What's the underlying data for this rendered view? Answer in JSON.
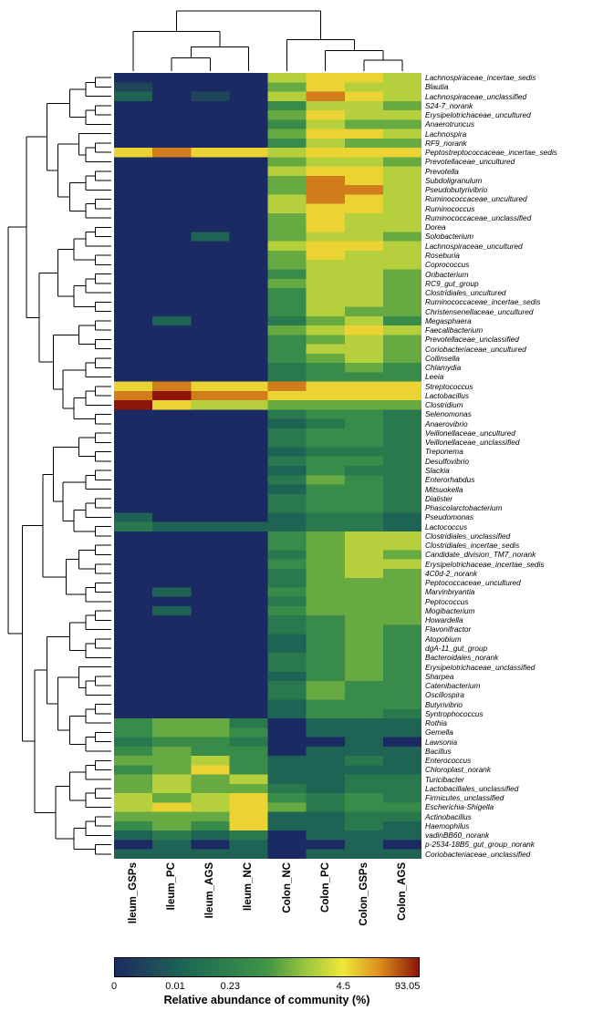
{
  "chart_data": {
    "type": "heatmap",
    "title": "",
    "legend": {
      "title": "Relative abundance of community (%)",
      "ticks": [
        {
          "label": "0",
          "pos": 0.0
        },
        {
          "label": "0.01",
          "pos": 0.2
        },
        {
          "label": "0.23",
          "pos": 0.38
        },
        {
          "label": "4.5",
          "pos": 0.75
        },
        {
          "label": "93.05",
          "pos": 0.96
        }
      ],
      "gradient_stops": [
        [
          0.0,
          "#1c2a63"
        ],
        [
          0.25,
          "#1f6a52"
        ],
        [
          0.5,
          "#3f9545"
        ],
        [
          0.63,
          "#9cc63e"
        ],
        [
          0.75,
          "#f0e83a"
        ],
        [
          0.87,
          "#dd8f1e"
        ],
        [
          1.0,
          "#8c1507"
        ]
      ],
      "value_scale_note": "cell values are 0-9 gradient indices; legend maps 0 to 93.05 % on a log-like scale"
    },
    "columns": [
      "Ileum_GSPs",
      "Ileum_PC",
      "Ileum_AGS",
      "Ileum_NC",
      "Colon_NC",
      "Colon_PC",
      "Colon_GSPs",
      "Colon_AGS"
    ],
    "rows": [
      "Lachnospiraceae_incertae_sedis",
      "Blautia",
      "Lachnospiraceae_unclassified",
      "S24-7_norank",
      "Erysipelotrichaceae_uncultured",
      "Anaerotruncus",
      "Lachnospira",
      "RF9_norank",
      "Peptostreptococcaceae_incertae_sedis",
      "Prevotellaceae_uncultured",
      "Prevotella",
      "Subdoligranulum",
      "Pseudobutyrivibrio",
      "Ruminococcaceae_uncultured",
      "Ruminococcus",
      "Ruminococcaceae_unclassified",
      "Dorea",
      "Solobacterium",
      "Lachnospiraceae_uncultured",
      "Roseburia",
      "Coprococcus",
      "Oribacterium",
      "RC9_gut_group",
      "Clostridiales_uncultured",
      "Ruminococcaceae_incertae_sedis",
      "Christensenellaceae_uncultured",
      "Megasphaera",
      "Faecalibacterium",
      "Prevotellaceae_unclassified",
      "Coriobacteriaceae_uncultured",
      "Collinsella",
      "Chlamydia",
      "Leeia",
      "Streptococcus",
      "Lactobacillus",
      "Clostridium",
      "Selenomonas",
      "Anaerovibrio",
      "Veillonellaceae_uncultured",
      "Veillonellaceae_unclassified",
      "Treponema",
      "Desulfovibrio",
      "Slackia",
      "Enterorhabdus",
      "Mitsuokella",
      "Dialister",
      "Phascolarctobacterium",
      "Pseudomonas",
      "Lactococcus",
      "Clostridiales_unclassified",
      "Clostridiales_incertae_sedis",
      "Candidate_division_TM7_norank",
      "Erysipelotrichaceae_incertae_sedis",
      "4C0d-2_norank",
      "Peptococcaceae_uncultured",
      "Marvinbryantia",
      "Peptococcus",
      "Mogibacterium",
      "Howardella",
      "Flavonifractor",
      "Atopobium",
      "dgA-11_gut_group",
      "Bacteroidales_norank",
      "Erysipelotrichaceae_unclassified",
      "Sharpea",
      "Catenibacterium",
      "Oscillospira",
      "Butyrivibrio",
      "Syntrophococcus",
      "Rothia",
      "Gemella",
      "Lawsonia",
      "Bacillus",
      "Enterococcus",
      "Chloroplast_norank",
      "Turicibacter",
      "Lactobacillales_unclassified",
      "Firmicutes_unclassified",
      "Escherichia-Shigella",
      "Actinobacillus",
      "Haemophilus",
      "vadinBB60_norank",
      "p-2534-18B5_gut_group_norank",
      "Coriobacteriaceae_unclassified"
    ],
    "values": [
      [
        0,
        0,
        0,
        0,
        6,
        7,
        7,
        6
      ],
      [
        1,
        0,
        0,
        0,
        5,
        7,
        6,
        6
      ],
      [
        2,
        0,
        1,
        0,
        6,
        8,
        7,
        6
      ],
      [
        0,
        0,
        0,
        0,
        4,
        6,
        6,
        5
      ],
      [
        0,
        0,
        0,
        0,
        5,
        7,
        6,
        6
      ],
      [
        0,
        0,
        0,
        0,
        4,
        6,
        5,
        5
      ],
      [
        0,
        0,
        0,
        0,
        5,
        7,
        7,
        6
      ],
      [
        0,
        0,
        0,
        0,
        4,
        6,
        5,
        5
      ],
      [
        7,
        8,
        7,
        7,
        6,
        7,
        7,
        7
      ],
      [
        0,
        0,
        0,
        0,
        5,
        6,
        6,
        5
      ],
      [
        0,
        0,
        0,
        0,
        6,
        7,
        7,
        6
      ],
      [
        0,
        0,
        0,
        0,
        5,
        8,
        7,
        6
      ],
      [
        0,
        0,
        0,
        0,
        5,
        8,
        8,
        6
      ],
      [
        0,
        0,
        0,
        0,
        6,
        8,
        7,
        6
      ],
      [
        0,
        0,
        0,
        0,
        6,
        7,
        7,
        6
      ],
      [
        0,
        0,
        0,
        0,
        5,
        7,
        6,
        6
      ],
      [
        0,
        0,
        0,
        0,
        5,
        7,
        6,
        6
      ],
      [
        0,
        0,
        2,
        0,
        5,
        6,
        6,
        5
      ],
      [
        0,
        0,
        0,
        0,
        6,
        7,
        7,
        6
      ],
      [
        0,
        0,
        0,
        0,
        5,
        7,
        6,
        6
      ],
      [
        0,
        0,
        0,
        0,
        5,
        6,
        6,
        6
      ],
      [
        0,
        0,
        0,
        0,
        4,
        6,
        6,
        5
      ],
      [
        0,
        0,
        0,
        0,
        5,
        6,
        6,
        5
      ],
      [
        0,
        0,
        0,
        0,
        4,
        6,
        6,
        5
      ],
      [
        0,
        0,
        0,
        0,
        4,
        6,
        6,
        5
      ],
      [
        0,
        0,
        0,
        0,
        4,
        6,
        5,
        5
      ],
      [
        0,
        2,
        0,
        0,
        3,
        5,
        6,
        4
      ],
      [
        0,
        0,
        0,
        0,
        5,
        6,
        7,
        6
      ],
      [
        0,
        0,
        0,
        0,
        4,
        5,
        6,
        5
      ],
      [
        0,
        0,
        0,
        0,
        4,
        6,
        6,
        5
      ],
      [
        0,
        0,
        0,
        0,
        4,
        5,
        6,
        5
      ],
      [
        0,
        0,
        0,
        0,
        3,
        4,
        5,
        4
      ],
      [
        0,
        0,
        0,
        0,
        3,
        4,
        4,
        4
      ],
      [
        7,
        8,
        7,
        7,
        8,
        7,
        7,
        7
      ],
      [
        8,
        9,
        8,
        8,
        7,
        7,
        7,
        7
      ],
      [
        9,
        7,
        6,
        6,
        5,
        5,
        5,
        5
      ],
      [
        0,
        0,
        0,
        0,
        3,
        4,
        4,
        3
      ],
      [
        0,
        0,
        0,
        0,
        2,
        3,
        4,
        3
      ],
      [
        0,
        0,
        0,
        0,
        3,
        4,
        4,
        3
      ],
      [
        0,
        0,
        0,
        0,
        3,
        4,
        4,
        3
      ],
      [
        0,
        0,
        0,
        0,
        2,
        3,
        3,
        3
      ],
      [
        0,
        0,
        0,
        0,
        3,
        4,
        4,
        3
      ],
      [
        0,
        0,
        0,
        0,
        2,
        4,
        3,
        3
      ],
      [
        0,
        0,
        0,
        0,
        3,
        5,
        4,
        3
      ],
      [
        0,
        0,
        0,
        0,
        2,
        4,
        4,
        3
      ],
      [
        0,
        0,
        0,
        0,
        3,
        4,
        4,
        3
      ],
      [
        0,
        0,
        0,
        0,
        3,
        4,
        4,
        3
      ],
      [
        2,
        0,
        0,
        0,
        2,
        3,
        3,
        2
      ],
      [
        3,
        2,
        2,
        2,
        2,
        3,
        3,
        2
      ],
      [
        0,
        0,
        0,
        0,
        4,
        5,
        6,
        6
      ],
      [
        0,
        0,
        0,
        0,
        4,
        5,
        6,
        6
      ],
      [
        0,
        0,
        0,
        0,
        3,
        5,
        6,
        5
      ],
      [
        0,
        0,
        0,
        0,
        4,
        5,
        6,
        6
      ],
      [
        0,
        0,
        0,
        0,
        3,
        5,
        6,
        5
      ],
      [
        0,
        0,
        0,
        0,
        3,
        5,
        5,
        5
      ],
      [
        0,
        2,
        0,
        0,
        4,
        5,
        5,
        5
      ],
      [
        0,
        0,
        0,
        0,
        3,
        5,
        5,
        5
      ],
      [
        0,
        2,
        0,
        0,
        4,
        5,
        5,
        5
      ],
      [
        0,
        0,
        0,
        0,
        3,
        4,
        5,
        5
      ],
      [
        0,
        0,
        0,
        0,
        3,
        4,
        5,
        4
      ],
      [
        0,
        0,
        0,
        0,
        2,
        4,
        5,
        4
      ],
      [
        0,
        0,
        0,
        0,
        2,
        4,
        5,
        4
      ],
      [
        0,
        0,
        0,
        0,
        3,
        4,
        5,
        4
      ],
      [
        0,
        0,
        0,
        0,
        3,
        4,
        5,
        4
      ],
      [
        0,
        0,
        0,
        0,
        2,
        4,
        5,
        4
      ],
      [
        0,
        0,
        0,
        0,
        3,
        5,
        4,
        4
      ],
      [
        0,
        0,
        0,
        0,
        3,
        5,
        4,
        4
      ],
      [
        0,
        0,
        0,
        0,
        2,
        4,
        4,
        4
      ],
      [
        0,
        0,
        0,
        0,
        2,
        4,
        4,
        3
      ],
      [
        4,
        5,
        5,
        3,
        0,
        2,
        2,
        2
      ],
      [
        4,
        5,
        5,
        4,
        0,
        2,
        2,
        2
      ],
      [
        3,
        4,
        4,
        3,
        0,
        0,
        2,
        0
      ],
      [
        4,
        5,
        4,
        4,
        0,
        2,
        2,
        2
      ],
      [
        5,
        5,
        6,
        4,
        2,
        2,
        3,
        2
      ],
      [
        4,
        5,
        7,
        4,
        2,
        2,
        2,
        2
      ],
      [
        5,
        6,
        5,
        6,
        2,
        2,
        3,
        3
      ],
      [
        5,
        6,
        5,
        5,
        3,
        2,
        3,
        3
      ],
      [
        6,
        5,
        6,
        7,
        4,
        3,
        4,
        3
      ],
      [
        6,
        7,
        6,
        7,
        5,
        3,
        4,
        4
      ],
      [
        5,
        5,
        5,
        7,
        2,
        2,
        3,
        3
      ],
      [
        4,
        5,
        4,
        7,
        2,
        2,
        3,
        2
      ],
      [
        2,
        3,
        2,
        3,
        0,
        2,
        2,
        2
      ],
      [
        0,
        2,
        0,
        2,
        0,
        0,
        2,
        0
      ],
      [
        2,
        2,
        2,
        2,
        0,
        2,
        2,
        2
      ]
    ],
    "column_dendrogram": {
      "h": 1.0,
      "c": [
        {
          "h": 0.66,
          "c": [
            {
              "l": 0
            },
            {
              "h": 0.4,
              "c": [
                {
                  "h": 0.22,
                  "c": [
                    {
                      "l": 1
                    },
                    {
                      "l": 2
                    }
                  ]
                },
                {
                  "l": 3
                }
              ]
            }
          ]
        },
        {
          "h": 0.52,
          "c": [
            {
              "l": 4
            },
            {
              "h": 0.34,
              "c": [
                {
                  "l": 5
                },
                {
                  "h": 0.18,
                  "c": [
                    {
                      "l": 6
                    },
                    {
                      "l": 7
                    }
                  ]
                }
              ]
            }
          ]
        }
      ]
    },
    "row_dendrogram": "hierarchical clustering of 84 taxa (drawn schematically)"
  }
}
